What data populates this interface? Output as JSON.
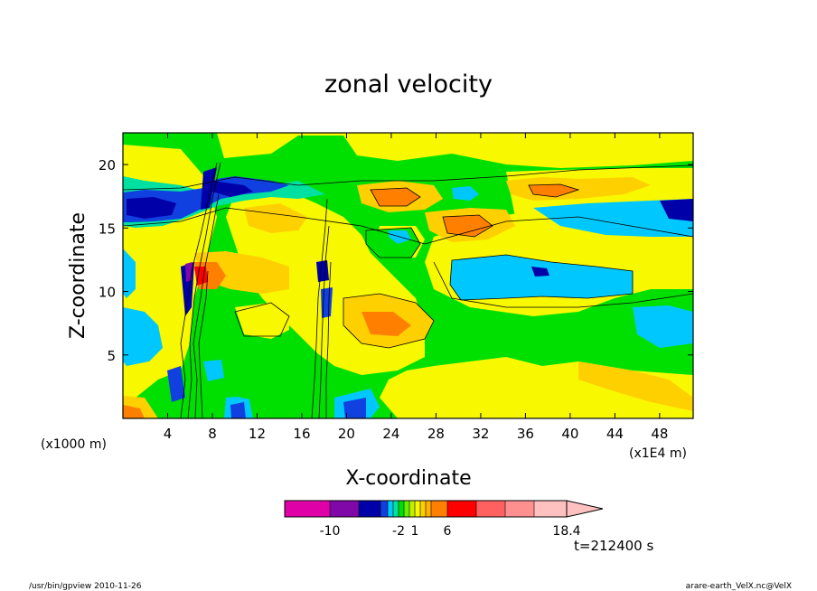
{
  "chart_data": {
    "type": "heatmap",
    "title": "zonal velocity",
    "xlabel": "X-coordinate",
    "ylabel": "Z-coordinate",
    "x_units": "(x1E4 m)",
    "y_units": "(x1000 m)",
    "xlim": [
      0,
      51
    ],
    "ylim": [
      0,
      22.5
    ],
    "x_ticks": [
      4,
      8,
      12,
      16,
      20,
      24,
      28,
      32,
      36,
      40,
      44,
      48
    ],
    "x_tick_labels": [
      "4",
      "8",
      "12",
      "16",
      "20",
      "24",
      "28",
      "32",
      "36",
      "40",
      "44",
      "48"
    ],
    "y_ticks": [
      5,
      10,
      15,
      20
    ],
    "y_tick_labels": [
      "5",
      "10",
      "15",
      "20"
    ],
    "colorbar": {
      "levels": [
        -12,
        -10,
        -8,
        -6,
        -4,
        -3,
        -2,
        -1,
        0,
        1,
        2,
        3,
        4,
        6,
        8,
        10,
        12,
        14,
        16,
        18.4
      ],
      "colors": [
        "#e000a8",
        "#8008a8",
        "#0000a8",
        "#1040e0",
        "#00c8ff",
        "#00e0a0",
        "#00e000",
        "#60f000",
        "#c0f000",
        "#f8f800",
        "#ffd000",
        "#ffb000",
        "#ff8000",
        "#ff0000",
        "#ff6060",
        "#ff9090",
        "#ffc0c0"
      ],
      "tick_labels": [
        "-10",
        "-2",
        "1",
        "6",
        "18.4"
      ],
      "tick_values": [
        -10,
        -2,
        1,
        6,
        18.4
      ]
    },
    "time_label": "t=212400 s",
    "grid": false
  },
  "footer_left": "/usr/bin/gpview   2010-11-26",
  "footer_right": "arare-earth_VelX.nc@VelX"
}
